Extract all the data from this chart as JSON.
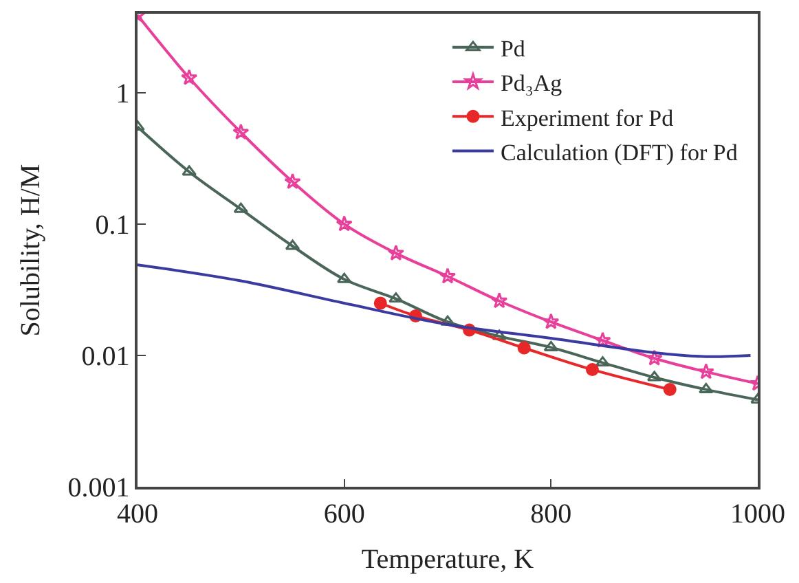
{
  "chart_data": {
    "type": "line",
    "xlabel": "Temperature, K",
    "ylabel": "Solubility, H/M",
    "xlim": [
      400,
      1000
    ],
    "xticks": [
      400,
      600,
      800,
      1000
    ],
    "ylim": [
      0.001,
      4
    ],
    "yticks": [
      0.001,
      0.01,
      0.1,
      1
    ],
    "log": "y",
    "legend": "top right",
    "series": [
      {
        "name": "Pd",
        "color": "#4a6658",
        "marker": "triangle",
        "x": [
          400,
          450,
          500,
          550,
          600,
          650,
          700,
          750,
          800,
          850,
          900,
          950,
          1000
        ],
        "values": [
          0.55,
          0.25,
          0.13,
          0.068,
          0.038,
          0.027,
          0.018,
          0.014,
          0.0115,
          0.0088,
          0.0068,
          0.0055,
          0.0046
        ]
      },
      {
        "name": "Pd₃Ag",
        "color": "#e8409a",
        "marker": "star",
        "x": [
          400,
          450,
          500,
          550,
          600,
          650,
          700,
          750,
          800,
          850,
          900,
          950,
          1000
        ],
        "values": [
          3.9,
          1.3,
          0.5,
          0.21,
          0.1,
          0.06,
          0.04,
          0.026,
          0.018,
          0.013,
          0.0095,
          0.0075,
          0.0061
        ]
      },
      {
        "name": "Experiment for Pd",
        "color": "#e82828",
        "marker": "circle",
        "x": [
          635,
          669,
          721,
          774,
          840,
          915
        ],
        "values": [
          0.025,
          0.02,
          0.0156,
          0.0114,
          0.0078,
          0.0055
        ]
      },
      {
        "name": "Calculation (DFT) for Pd",
        "color": "#3a3aa0",
        "marker": "none",
        "x": [
          400,
          500,
          600,
          700,
          800,
          900,
          950,
          993
        ],
        "values": [
          0.049,
          0.037,
          0.025,
          0.0172,
          0.0135,
          0.0105,
          0.0098,
          0.01
        ]
      }
    ]
  }
}
